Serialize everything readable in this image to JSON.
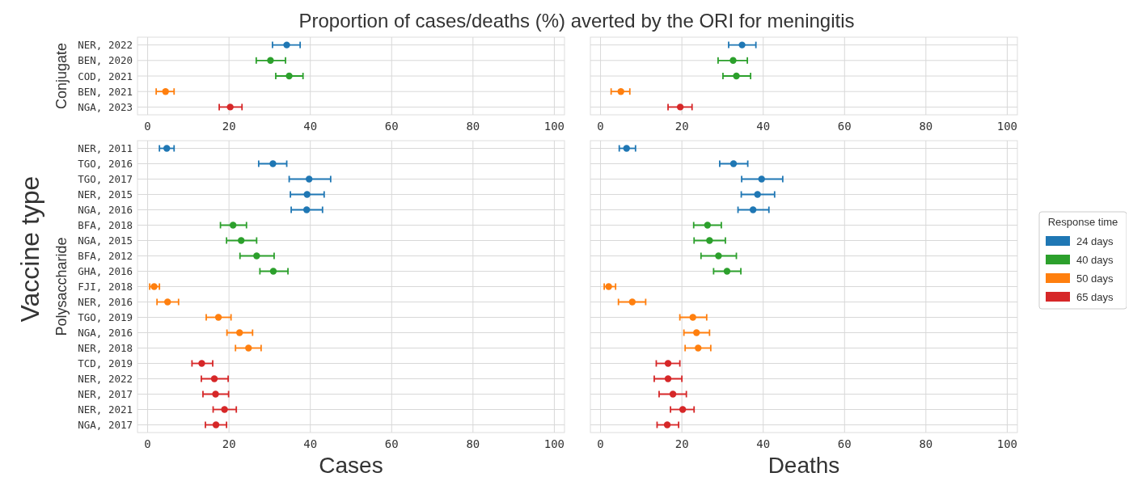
{
  "chart_data": [
    {
      "type": "scatter",
      "title": "Proportion of cases/deaths (%) averted by the ORI for meningitis",
      "ylabel": "Conjugate",
      "annotations": [
        "Vaccine type"
      ],
      "orientation": "horizontal",
      "marker": "circle",
      "grid": true,
      "tick_labels": true,
      "categories": [
        "NER, 2022",
        "BEN, 2020",
        "COD, 2021",
        "BEN, 2021",
        "NGA, 2023"
      ],
      "xlim": [
        -2.5,
        102.5
      ],
      "xticks": [
        0,
        20,
        40,
        60,
        80,
        100
      ],
      "series": [
        {
          "color": "#1f77b4",
          "values": [
            34.2,
            null,
            null,
            null,
            null
          ],
          "errors": [
            [
              30.7,
              37.5
            ],
            null,
            null,
            null,
            null
          ]
        },
        {
          "color": "#2ca02c",
          "values": [
            null,
            30.2,
            34.8,
            null,
            null
          ],
          "errors": [
            null,
            [
              26.7,
              33.9
            ],
            [
              31.5,
              38.2
            ],
            null,
            null
          ]
        },
        {
          "color": "#ff7f0e",
          "values": [
            null,
            null,
            null,
            4.4,
            null
          ],
          "errors": [
            null,
            null,
            null,
            [
              2.1,
              6.5
            ],
            null
          ]
        },
        {
          "color": "#d62728",
          "values": [
            null,
            null,
            null,
            null,
            20.3
          ],
          "errors": [
            null,
            null,
            null,
            null,
            [
              17.6,
              23.2
            ]
          ]
        }
      ]
    },
    {
      "type": "scatter",
      "orientation": "horizontal",
      "marker": "circle",
      "grid": true,
      "tick_labels": "x",
      "categories": [
        null,
        null,
        null,
        null,
        null
      ],
      "xlim": [
        -2.5,
        102.5
      ],
      "xticks": [
        0,
        20,
        40,
        60,
        80,
        100
      ],
      "series": [
        {
          "color": "#1f77b4",
          "values": [
            34.8,
            null,
            null,
            null,
            null
          ],
          "errors": [
            [
              31.5,
              38.2
            ],
            null,
            null,
            null,
            null
          ]
        },
        {
          "color": "#2ca02c",
          "values": [
            null,
            32.6,
            33.4,
            null,
            null
          ],
          "errors": [
            null,
            [
              28.9,
              36.1
            ],
            [
              30.1,
              36.9
            ],
            null,
            null
          ]
        },
        {
          "color": "#ff7f0e",
          "values": [
            null,
            null,
            null,
            5.0,
            null
          ],
          "errors": [
            null,
            null,
            null,
            [
              2.6,
              7.2
            ],
            null
          ]
        },
        {
          "color": "#d62728",
          "values": [
            null,
            null,
            null,
            null,
            19.6
          ],
          "errors": [
            null,
            null,
            null,
            null,
            [
              16.6,
              22.5
            ]
          ]
        }
      ]
    },
    {
      "type": "scatter",
      "ylabel": "Polysaccharide",
      "xlabel": "Cases",
      "orientation": "horizontal",
      "marker": "circle",
      "grid": true,
      "tick_labels": true,
      "categories": [
        "NER, 2011",
        "TGO, 2016",
        "TGO, 2017",
        "NER, 2015",
        "NGA, 2016",
        "BFA, 2018",
        "NGA, 2015",
        "BFA, 2012",
        "GHA, 2016",
        "FJI, 2018",
        "NER, 2016",
        "TGO, 2019",
        "NGA, 2016",
        "NER, 2018",
        "TCD, 2019",
        "NER, 2022",
        "NER, 2017",
        "NER, 2021",
        "NGA, 2017"
      ],
      "xlim": [
        -2.5,
        102.5
      ],
      "xticks": [
        0,
        20,
        40,
        60,
        80,
        100
      ],
      "series": [
        {
          "color": "#1f77b4",
          "values": [
            4.7,
            30.8,
            39.7,
            39.2,
            39.1,
            null,
            null,
            null,
            null,
            null,
            null,
            null,
            null,
            null,
            null,
            null,
            null,
            null,
            null
          ],
          "errors": [
            [
              2.9,
              6.5
            ],
            [
              27.3,
              34.2
            ],
            [
              34.8,
              45.0
            ],
            [
              35.1,
              43.4
            ],
            [
              35.3,
              43.0
            ],
            null,
            null,
            null,
            null,
            null,
            null,
            null,
            null,
            null,
            null,
            null,
            null,
            null,
            null
          ]
        },
        {
          "color": "#2ca02c",
          "values": [
            null,
            null,
            null,
            null,
            null,
            21.0,
            23.0,
            26.8,
            30.9,
            null,
            null,
            null,
            null,
            null,
            null,
            null,
            null,
            null,
            null
          ],
          "errors": [
            null,
            null,
            null,
            null,
            null,
            [
              17.9,
              24.3
            ],
            [
              19.4,
              26.8
            ],
            [
              22.7,
              31.1
            ],
            [
              27.6,
              34.5
            ],
            null,
            null,
            null,
            null,
            null,
            null,
            null,
            null,
            null,
            null
          ]
        },
        {
          "color": "#ff7f0e",
          "values": [
            null,
            null,
            null,
            null,
            null,
            null,
            null,
            null,
            null,
            1.6,
            4.9,
            17.4,
            22.6,
            24.8,
            null,
            null,
            null,
            null,
            null
          ],
          "errors": [
            null,
            null,
            null,
            null,
            null,
            null,
            null,
            null,
            null,
            [
              0.5,
              2.9
            ],
            [
              2.3,
              7.6
            ],
            [
              14.4,
              20.5
            ],
            [
              19.5,
              25.8
            ],
            [
              21.6,
              27.9
            ],
            null,
            null,
            null,
            null,
            null
          ]
        },
        {
          "color": "#d62728",
          "values": [
            null,
            null,
            null,
            null,
            null,
            null,
            null,
            null,
            null,
            null,
            null,
            null,
            null,
            null,
            13.3,
            16.4,
            16.7,
            18.9,
            16.8
          ],
          "errors": [
            null,
            null,
            null,
            null,
            null,
            null,
            null,
            null,
            null,
            null,
            null,
            null,
            null,
            null,
            [
              10.9,
              16.0
            ],
            [
              13.2,
              19.8
            ],
            [
              13.6,
              19.9
            ],
            [
              16.1,
              21.8
            ],
            [
              14.2,
              19.4
            ]
          ]
        }
      ]
    },
    {
      "type": "scatter",
      "xlabel": "Deaths",
      "orientation": "horizontal",
      "marker": "circle",
      "grid": true,
      "tick_labels": "x",
      "legend": "right",
      "legend_title": "Response time",
      "categories": [
        null,
        null,
        null,
        null,
        null,
        null,
        null,
        null,
        null,
        null,
        null,
        null,
        null,
        null,
        null,
        null,
        null,
        null,
        null
      ],
      "xlim": [
        -2.5,
        102.5
      ],
      "xticks": [
        0,
        20,
        40,
        60,
        80,
        100
      ],
      "series": [
        {
          "name": "24 days",
          "color": "#1f77b4",
          "values": [
            6.4,
            32.7,
            39.6,
            38.6,
            37.5,
            null,
            null,
            null,
            null,
            null,
            null,
            null,
            null,
            null,
            null,
            null,
            null,
            null,
            null
          ],
          "errors": [
            [
              4.6,
              8.6
            ],
            [
              29.3,
              36.2
            ],
            [
              34.7,
              44.8
            ],
            [
              34.6,
              42.8
            ],
            [
              33.8,
              41.4
            ],
            null,
            null,
            null,
            null,
            null,
            null,
            null,
            null,
            null,
            null,
            null,
            null,
            null,
            null
          ]
        },
        {
          "name": "40 days",
          "color": "#2ca02c",
          "values": [
            null,
            null,
            null,
            null,
            null,
            26.3,
            26.8,
            29.0,
            31.1,
            null,
            null,
            null,
            null,
            null,
            null,
            null,
            null,
            null,
            null
          ],
          "errors": [
            null,
            null,
            null,
            null,
            null,
            [
              22.9,
              29.7
            ],
            [
              23.0,
              30.7
            ],
            [
              24.7,
              33.4
            ],
            [
              27.8,
              34.5
            ],
            null,
            null,
            null,
            null,
            null,
            null,
            null,
            null,
            null,
            null
          ]
        },
        {
          "name": "50 days",
          "color": "#ff7f0e",
          "values": [
            null,
            null,
            null,
            null,
            null,
            null,
            null,
            null,
            null,
            2.0,
            7.8,
            22.7,
            23.6,
            24.0,
            null,
            null,
            null,
            null,
            null
          ],
          "errors": [
            null,
            null,
            null,
            null,
            null,
            null,
            null,
            null,
            null,
            [
              0.9,
              3.7
            ],
            [
              4.4,
              11.1
            ],
            [
              19.5,
              26.1
            ],
            [
              20.5,
              26.8
            ],
            [
              20.8,
              27.1
            ],
            null,
            null,
            null,
            null,
            null
          ]
        },
        {
          "name": "65 days",
          "color": "#d62728",
          "values": [
            null,
            null,
            null,
            null,
            null,
            null,
            null,
            null,
            null,
            null,
            null,
            null,
            null,
            null,
            16.6,
            16.6,
            17.8,
            20.2,
            16.4
          ],
          "errors": [
            null,
            null,
            null,
            null,
            null,
            null,
            null,
            null,
            null,
            null,
            null,
            null,
            null,
            null,
            [
              13.7,
              19.5
            ],
            [
              13.2,
              20.0
            ],
            [
              14.4,
              21.1
            ],
            [
              17.2,
              23.0
            ],
            [
              13.9,
              19.2
            ]
          ]
        }
      ]
    }
  ]
}
